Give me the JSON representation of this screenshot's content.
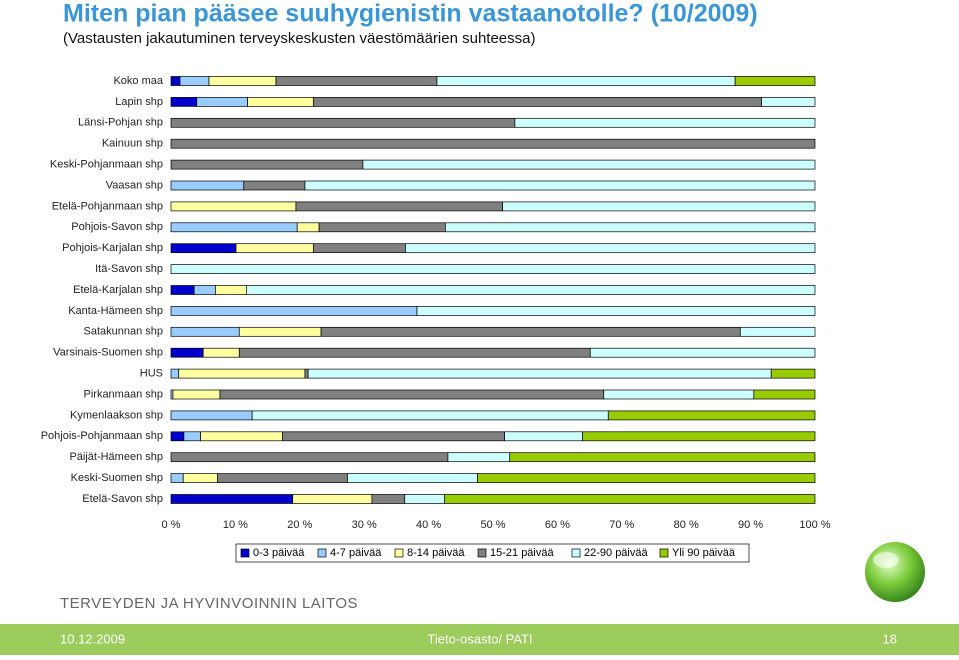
{
  "page": {
    "title": "Miten pian pääsee suuhygienistin vastaanotolle? (10/2009)",
    "subtitle": "(Vastausten jakautuminen terveyskeskusten väestömäärien suhteessa)",
    "org": "TERVEYDEN JA HYVINVOINNIN LAITOS",
    "footer_date": "10.12.2009",
    "footer_center": "Tieto-osasto/ PATI",
    "footer_page": "18"
  },
  "chart_data": {
    "type": "stacked_barh",
    "categories": [
      "Koko maa",
      "Lapin shp",
      "Länsi-Pohjan shp",
      "Kainuun shp",
      "Keski-Pohjanmaan shp",
      "Vaasan shp",
      "Etelä-Pohjanmaan shp",
      "Pohjois-Savon shp",
      "Pohjois-Karjalan shp",
      "Itä-Savon shp",
      "Etelä-Karjalan shp",
      "Kanta-Hämeen shp",
      "Satakunnan shp",
      "Varsinais-Suomen shp",
      "HUS",
      "Pirkanmaan shp",
      "Kymenlaakson shp",
      "Pohjois-Pohjanmaan shp",
      "Päijät-Hämeen shp",
      "Keski-Suomen shp",
      "Etelä-Savon shp"
    ],
    "series": [
      {
        "name": "0-3 päivää",
        "color": "#0000cc",
        "values": [
          1.4,
          4.0,
          0,
          0,
          0,
          0,
          0,
          0,
          10.1,
          0,
          3.6,
          0,
          0,
          5.0,
          0,
          0,
          0,
          2.0,
          0,
          0,
          18.9
        ]
      },
      {
        "name": "4-7 päivää",
        "color": "#99ccff",
        "values": [
          4.5,
          7.9,
          0,
          0,
          0,
          11.3,
          0,
          19.6,
          0,
          0,
          3.3,
          38.2,
          10.6,
          0,
          1.2,
          0.3,
          12.6,
          2.6,
          0,
          1.9,
          0
        ]
      },
      {
        "name": "8-14 päivää",
        "color": "#ffffa0",
        "values": [
          10.4,
          10.2,
          0,
          0,
          0,
          0,
          19.4,
          3.4,
          12.0,
          0,
          4.8,
          0,
          12.7,
          5.6,
          19.6,
          7.3,
          0,
          12.7,
          0,
          5.3,
          12.3
        ]
      },
      {
        "name": "15-21 päivää",
        "color": "#808080",
        "values": [
          25.0,
          69.6,
          53.4,
          100,
          29.8,
          9.5,
          32.1,
          19.6,
          14.3,
          0,
          0,
          0,
          65.1,
          54.5,
          0.5,
          59.6,
          0,
          34.5,
          43.0,
          20.2,
          5.1
        ]
      },
      {
        "name": "22-90 päivää",
        "color": "#ccffff",
        "values": [
          46.3,
          8.3,
          46.6,
          0,
          70.2,
          79.2,
          48.5,
          57.4,
          63.6,
          100,
          88.3,
          61.8,
          11.6,
          34.9,
          71.9,
          23.3,
          55.3,
          12.1,
          9.6,
          20.2,
          6.2
        ]
      },
      {
        "name": "Yli 90 päivää",
        "color": "#99cc00",
        "values": [
          12.4,
          0,
          0,
          0,
          0,
          0,
          0,
          0,
          0,
          0,
          0,
          0,
          0,
          0,
          6.8,
          9.5,
          32.1,
          36.1,
          47.4,
          52.4,
          57.5
        ]
      }
    ],
    "xlim": [
      0,
      100
    ],
    "xticks": [
      {
        "value": 0,
        "label": "0 %"
      },
      {
        "value": 10,
        "label": "10 %"
      },
      {
        "value": 20,
        "label": "20 %"
      },
      {
        "value": 30,
        "label": "30 %"
      },
      {
        "value": 40,
        "label": "40 %"
      },
      {
        "value": 50,
        "label": "50 %"
      },
      {
        "value": 60,
        "label": "60 %"
      },
      {
        "value": 70,
        "label": "70 %"
      },
      {
        "value": 80,
        "label": "80 %"
      },
      {
        "value": 90,
        "label": "90 %"
      },
      {
        "value": 100,
        "label": "100 %"
      }
    ],
    "legend": "bottom"
  }
}
